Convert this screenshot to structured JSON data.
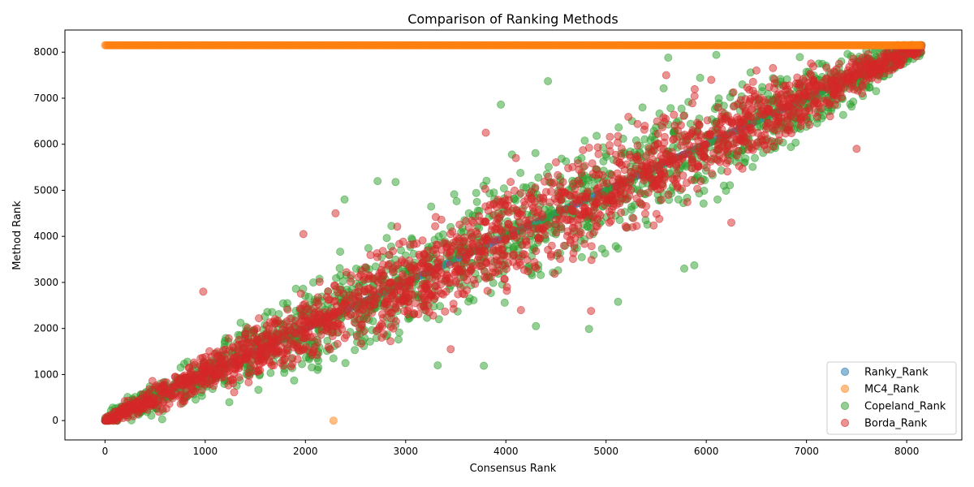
{
  "chart_data": {
    "type": "scatter",
    "title": "Comparison of Ranking Methods",
    "xlabel": "Consensus Rank",
    "ylabel": "Method Rank",
    "xlim": [
      -400,
      8550
    ],
    "ylim": [
      -420,
      8480
    ],
    "xticks": [
      0,
      1000,
      2000,
      3000,
      4000,
      5000,
      6000,
      7000,
      8000
    ],
    "xtick_labels": [
      "0",
      "1000",
      "2000",
      "3000",
      "4000",
      "5000",
      "6000",
      "7000",
      "8000"
    ],
    "yticks": [
      0,
      1000,
      2000,
      3000,
      4000,
      5000,
      6000,
      7000,
      8000
    ],
    "ytick_labels": [
      "0",
      "1000",
      "2000",
      "3000",
      "4000",
      "5000",
      "6000",
      "7000",
      "8000"
    ],
    "grid": false,
    "legend_position": "bottom-right",
    "series": [
      {
        "name": "Ranky_Rank",
        "color": "#1f77b4",
        "pattern": "identity line y = x from 0 to 8150 (hidden beneath other series)",
        "x_range": [
          0,
          8150
        ],
        "points": [
          [
            0,
            0
          ],
          [
            8150,
            8150
          ]
        ]
      },
      {
        "name": "MC4_Rank",
        "color": "#ff7f0e",
        "pattern": "almost all points at y = 8150 across x = 0..8150; single outlier",
        "x_range": [
          0,
          8150
        ],
        "constant_y": 8150,
        "points": [
          [
            2280,
            0
          ]
        ]
      },
      {
        "name": "Copeland_Rank",
        "color": "#2ca02c",
        "pattern": "dense scatter around diagonal y = x, spread widening toward middle",
        "x_range": [
          0,
          8150
        ],
        "points": [
          [
            4830,
            1990
          ],
          [
            3780,
            1190
          ],
          [
            3320,
            1200
          ],
          [
            4420,
            7370
          ],
          [
            5620,
            7880
          ],
          [
            6100,
            7940
          ],
          [
            4300,
            2050
          ],
          [
            3950,
            6860
          ],
          [
            2390,
            4800
          ],
          [
            2720,
            5200
          ],
          [
            1240,
            400
          ],
          [
            570,
            30
          ],
          [
            5120,
            2580
          ],
          [
            5780,
            3300
          ],
          [
            5880,
            3370
          ],
          [
            2900,
            5180
          ]
        ]
      },
      {
        "name": "Borda_Rank",
        "color": "#d62728",
        "pattern": "dense scatter around diagonal y = x, slightly tighter than Copeland",
        "x_range": [
          0,
          8150
        ],
        "points": [
          [
            980,
            2800
          ],
          [
            4850,
            2380
          ],
          [
            3450,
            1550
          ],
          [
            3800,
            6250
          ],
          [
            4100,
            5700
          ],
          [
            6250,
            4300
          ],
          [
            1980,
            4050
          ],
          [
            7500,
            5900
          ],
          [
            5600,
            7500
          ],
          [
            2300,
            4500
          ],
          [
            4150,
            2400
          ],
          [
            6500,
            7600
          ]
        ]
      }
    ]
  }
}
